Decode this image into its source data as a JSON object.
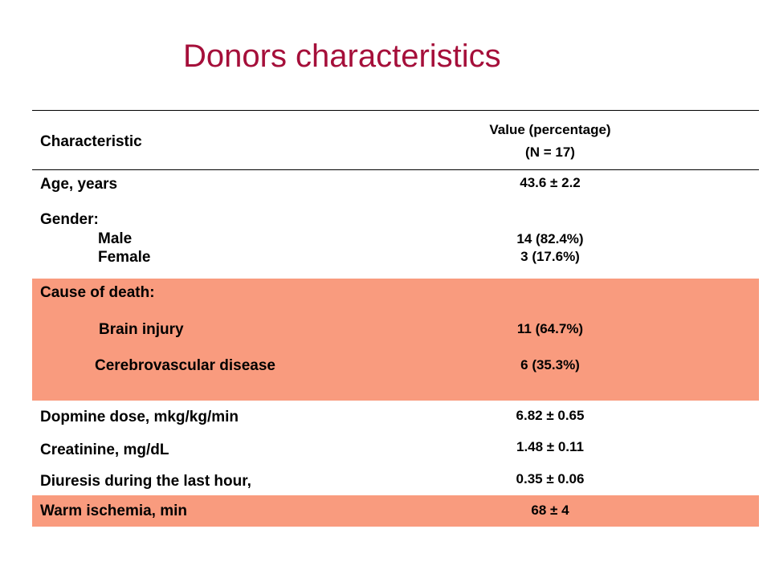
{
  "title": "Donors characteristics",
  "colors": {
    "title": "#a50f3a",
    "highlight_band": "#f99b7e"
  },
  "table": {
    "header": {
      "characteristic": "Characteristic",
      "value_line1": "Value (percentage)",
      "value_line2": "(N = 17)"
    },
    "rows": {
      "age": {
        "label": "Age, years",
        "value": "43.6 ± 2.2"
      },
      "gender": {
        "label": "Gender:",
        "male_label": "Male",
        "male_value": "14 (82.4%)",
        "female_label": "Female",
        "female_value": "3 (17.6%)"
      },
      "cause": {
        "label": "Cause of death:",
        "brain_label": "Brain injury",
        "brain_value": "11 (64.7%)",
        "cerebro_label": "Cerebrovascular disease",
        "cerebro_value": "6 (35.3%)"
      },
      "dopmine": {
        "label": "Dopmine dose,  mkg/kg/min",
        "value": "6.82 ± 0.65"
      },
      "creatinine": {
        "label": "Creatinine, mg/dL",
        "value": "1.48 ± 0.11"
      },
      "diuresis": {
        "label": "Diuresis during the last hour,",
        "value": "0.35 ± 0.06"
      },
      "ischemia": {
        "label": "Warm ischemia, min",
        "value": "68 ± 4"
      }
    }
  }
}
